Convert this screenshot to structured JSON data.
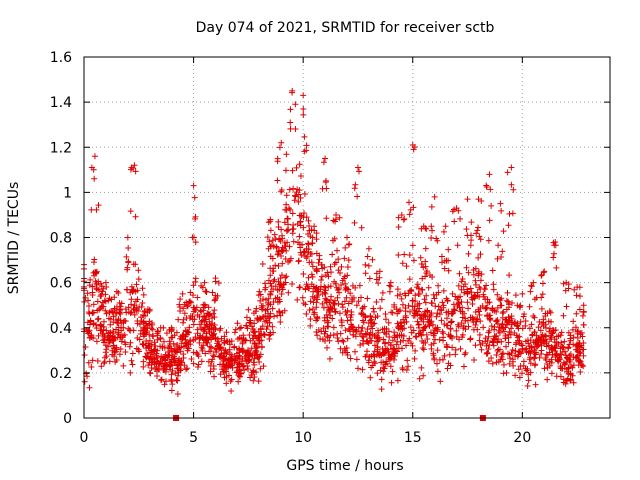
{
  "chart_data": {
    "type": "scatter",
    "title": "Day 074 of 2021, SRMTID for receiver sctb",
    "xlabel": "GPS time / hours",
    "ylabel": "SRMTID / TECUs",
    "xlim": [
      0,
      24
    ],
    "ylim": [
      0,
      1.6
    ],
    "xticks": [
      0,
      5,
      10,
      15,
      20
    ],
    "yticks": [
      0,
      0.2,
      0.4,
      0.6,
      0.8,
      1,
      1.2,
      1.4,
      1.6
    ],
    "x_tick_labels": [
      "0",
      "5",
      "10",
      "15",
      "20"
    ],
    "y_tick_labels": [
      "0",
      "0.2",
      "0.4",
      "0.6",
      "0.8",
      "1",
      "1.2",
      "1.4",
      "1.6"
    ],
    "grid": true,
    "marker": "+",
    "color": "#e00000",
    "markers_on_x_axis": [
      4.2,
      18.2
    ],
    "envelope_note": "approximate binned distribution of the dense point cloud",
    "series": [
      {
        "name": "SRMTID",
        "bins": [
          {
            "t": 0.0,
            "med": 0.4,
            "spread": 0.16,
            "peak": 0.68
          },
          {
            "t": 0.5,
            "med": 0.5,
            "spread": 0.2,
            "peak": 1.16
          },
          {
            "t": 1.0,
            "med": 0.38,
            "spread": 0.12,
            "peak": 0.6
          },
          {
            "t": 1.5,
            "med": 0.36,
            "spread": 0.1,
            "peak": 0.56
          },
          {
            "t": 2.0,
            "med": 0.42,
            "spread": 0.14,
            "peak": 0.8
          },
          {
            "t": 2.3,
            "med": 0.5,
            "spread": 0.16,
            "peak": 1.12
          },
          {
            "t": 3.0,
            "med": 0.3,
            "spread": 0.09,
            "peak": 0.48
          },
          {
            "t": 3.5,
            "med": 0.25,
            "spread": 0.07,
            "peak": 0.4
          },
          {
            "t": 4.0,
            "med": 0.24,
            "spread": 0.07,
            "peak": 0.4
          },
          {
            "t": 4.5,
            "med": 0.3,
            "spread": 0.1,
            "peak": 0.55
          },
          {
            "t": 5.0,
            "med": 0.45,
            "spread": 0.14,
            "peak": 1.03
          },
          {
            "t": 5.5,
            "med": 0.38,
            "spread": 0.1,
            "peak": 0.6
          },
          {
            "t": 6.0,
            "med": 0.36,
            "spread": 0.1,
            "peak": 0.62
          },
          {
            "t": 6.5,
            "med": 0.23,
            "spread": 0.06,
            "peak": 0.38
          },
          {
            "t": 7.0,
            "med": 0.25,
            "spread": 0.07,
            "peak": 0.42
          },
          {
            "t": 7.5,
            "med": 0.28,
            "spread": 0.08,
            "peak": 0.48
          },
          {
            "t": 8.0,
            "med": 0.36,
            "spread": 0.1,
            "peak": 0.56
          },
          {
            "t": 8.5,
            "med": 0.55,
            "spread": 0.16,
            "peak": 0.88
          },
          {
            "t": 9.0,
            "med": 0.7,
            "spread": 0.18,
            "peak": 1.22
          },
          {
            "t": 9.5,
            "med": 0.95,
            "spread": 0.22,
            "peak": 1.45
          },
          {
            "t": 10.0,
            "med": 0.8,
            "spread": 0.22,
            "peak": 1.43
          },
          {
            "t": 10.5,
            "med": 0.55,
            "spread": 0.16,
            "peak": 0.85
          },
          {
            "t": 11.0,
            "med": 0.48,
            "spread": 0.14,
            "peak": 1.15
          },
          {
            "t": 11.5,
            "med": 0.5,
            "spread": 0.14,
            "peak": 0.9
          },
          {
            "t": 12.0,
            "med": 0.48,
            "spread": 0.14,
            "peak": 0.8
          },
          {
            "t": 12.5,
            "med": 0.4,
            "spread": 0.12,
            "peak": 1.11
          },
          {
            "t": 13.0,
            "med": 0.38,
            "spread": 0.12,
            "peak": 0.75
          },
          {
            "t": 13.5,
            "med": 0.33,
            "spread": 0.1,
            "peak": 0.65
          },
          {
            "t": 14.0,
            "med": 0.3,
            "spread": 0.1,
            "peak": 0.6
          },
          {
            "t": 14.5,
            "med": 0.42,
            "spread": 0.14,
            "peak": 0.9
          },
          {
            "t": 15.0,
            "med": 0.48,
            "spread": 0.16,
            "peak": 1.21
          },
          {
            "t": 15.5,
            "med": 0.45,
            "spread": 0.15,
            "peak": 0.85
          },
          {
            "t": 16.0,
            "med": 0.4,
            "spread": 0.14,
            "peak": 0.98
          },
          {
            "t": 16.5,
            "med": 0.4,
            "spread": 0.14,
            "peak": 0.85
          },
          {
            "t": 17.0,
            "med": 0.45,
            "spread": 0.14,
            "peak": 0.93
          },
          {
            "t": 17.5,
            "med": 0.5,
            "spread": 0.15,
            "peak": 0.97
          },
          {
            "t": 18.0,
            "med": 0.5,
            "spread": 0.15,
            "peak": 0.97
          },
          {
            "t": 18.5,
            "med": 0.42,
            "spread": 0.12,
            "peak": 1.08
          },
          {
            "t": 19.0,
            "med": 0.4,
            "spread": 0.12,
            "peak": 0.95
          },
          {
            "t": 19.5,
            "med": 0.4,
            "spread": 0.13,
            "peak": 1.11
          },
          {
            "t": 20.0,
            "med": 0.28,
            "spread": 0.09,
            "peak": 0.55
          },
          {
            "t": 20.5,
            "med": 0.33,
            "spread": 0.1,
            "peak": 0.6
          },
          {
            "t": 21.0,
            "med": 0.35,
            "spread": 0.11,
            "peak": 0.65
          },
          {
            "t": 21.5,
            "med": 0.32,
            "spread": 0.1,
            "peak": 0.78
          },
          {
            "t": 22.0,
            "med": 0.25,
            "spread": 0.08,
            "peak": 0.6
          },
          {
            "t": 22.5,
            "med": 0.3,
            "spread": 0.09,
            "peak": 0.58
          },
          {
            "t": 22.8,
            "med": 0.3,
            "spread": 0.09,
            "peak": 0.5
          }
        ]
      }
    ]
  }
}
